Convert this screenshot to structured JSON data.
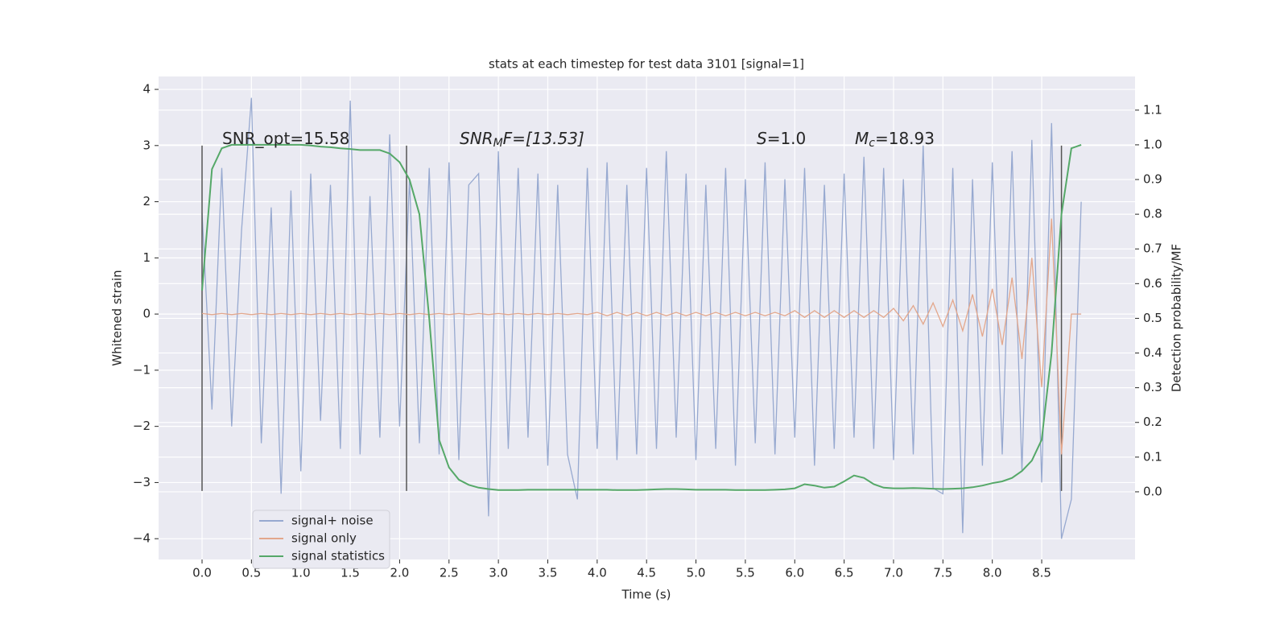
{
  "chart_data": {
    "type": "line",
    "title": "stats at each timestep for test data 3101 [signal=1]",
    "xlabel": "Time (s)",
    "ylabel": "Whitened strain",
    "y2label": "Detection probability/MF",
    "xlim": [
      -0.44,
      9.445
    ],
    "ylim": [
      -4.37,
      4.23
    ],
    "y2lim": [
      -0.195,
      1.197
    ],
    "xticks": [
      {
        "value": 0,
        "label": "0.0"
      },
      0.5,
      {
        "value": 1,
        "label": "1.0"
      },
      1.5,
      {
        "value": 2,
        "label": "2.0"
      },
      2.5,
      {
        "value": 3,
        "label": "3.0"
      },
      3.5,
      {
        "value": 4,
        "label": "4.0"
      },
      4.5,
      {
        "value": 5,
        "label": "5.0"
      },
      5.5,
      {
        "value": 6,
        "label": "6.0"
      },
      6.5,
      {
        "value": 7,
        "label": "7.0"
      },
      7.5,
      {
        "value": 8,
        "label": "8.0"
      },
      8.5
    ],
    "yticks": [
      {
        "value": -4,
        "label": "−4"
      },
      {
        "value": -3,
        "label": "−3"
      },
      {
        "value": -2,
        "label": "−2"
      },
      {
        "value": -1,
        "label": "−1"
      },
      0,
      1,
      2,
      3,
      4
    ],
    "y2ticks": [
      {
        "value": 0,
        "label": "0.0"
      },
      0.1,
      0.2,
      0.3,
      0.4,
      0.5,
      0.6,
      0.7,
      0.8,
      0.9,
      {
        "value": 1,
        "label": "1.0"
      },
      1.1
    ],
    "grid": true,
    "legend": "lower left",
    "x": [
      0.0,
      0.1,
      0.2,
      0.3,
      0.4,
      0.5,
      0.6,
      0.7,
      0.8,
      0.9,
      1.0,
      1.1,
      1.2,
      1.3,
      1.4,
      1.5,
      1.6,
      1.7,
      1.8,
      1.9,
      2.0,
      2.1,
      2.2,
      2.3,
      2.4,
      2.5,
      2.6,
      2.7,
      2.8,
      2.9,
      3.0,
      3.1,
      3.2,
      3.3,
      3.4,
      3.5,
      3.6,
      3.7,
      3.8,
      3.9,
      4.0,
      4.1,
      4.2,
      4.3,
      4.4,
      4.5,
      4.6,
      4.7,
      4.8,
      4.9,
      5.0,
      5.1,
      5.2,
      5.3,
      5.4,
      5.5,
      5.6,
      5.7,
      5.8,
      5.9,
      6.0,
      6.1,
      6.2,
      6.3,
      6.4,
      6.5,
      6.6,
      6.7,
      6.8,
      6.9,
      7.0,
      7.1,
      7.2,
      7.3,
      7.4,
      7.5,
      7.6,
      7.7,
      7.8,
      7.9,
      8.0,
      8.1,
      8.2,
      8.3,
      8.4,
      8.5,
      8.6,
      8.7,
      8.8,
      8.9
    ],
    "series": [
      {
        "name": "signal+ noise",
        "color": "#97a9d0",
        "values": [
          1.8,
          -1.7,
          2.6,
          -2.0,
          1.5,
          3.85,
          -2.3,
          1.9,
          -3.2,
          2.2,
          -2.8,
          2.5,
          -1.9,
          2.3,
          -2.4,
          3.8,
          -2.5,
          2.1,
          -2.2,
          3.2,
          -2.0,
          2.4,
          -2.3,
          2.6,
          -2.5,
          2.7,
          -2.6,
          2.3,
          2.5,
          -3.6,
          2.9,
          -2.4,
          2.6,
          -2.2,
          2.5,
          -2.7,
          2.3,
          -2.5,
          -3.3,
          2.6,
          -2.4,
          2.7,
          -2.6,
          2.3,
          -2.5,
          2.6,
          -2.4,
          2.9,
          -2.2,
          2.5,
          -2.6,
          2.3,
          -2.4,
          2.6,
          -2.7,
          2.4,
          -2.3,
          2.7,
          -2.5,
          2.4,
          -2.2,
          2.6,
          -2.7,
          2.3,
          -2.4,
          2.5,
          -2.2,
          2.8,
          -2.4,
          2.6,
          -2.6,
          2.4,
          -2.5,
          3.0,
          -3.1,
          -3.2,
          2.6,
          -3.9,
          2.4,
          -2.7,
          2.7,
          -2.5,
          2.9,
          -2.8,
          3.1,
          -3.0,
          3.4,
          -4.0,
          -3.3,
          2.0
        ]
      },
      {
        "name": "signal only",
        "color": "#e3a78c",
        "values": [
          0.01,
          -0.01,
          0.01,
          -0.01,
          0.01,
          -0.01,
          0.01,
          -0.01,
          0.01,
          -0.01,
          0.01,
          -0.01,
          0.01,
          -0.01,
          0.01,
          -0.01,
          0.01,
          -0.01,
          0.01,
          -0.01,
          0.01,
          -0.01,
          0.01,
          -0.01,
          0.01,
          -0.01,
          0.01,
          -0.01,
          0.01,
          -0.01,
          0.01,
          -0.01,
          0.01,
          -0.01,
          0.01,
          -0.01,
          0.01,
          -0.01,
          0.01,
          -0.01,
          0.03,
          -0.03,
          0.03,
          -0.03,
          0.03,
          -0.03,
          0.03,
          -0.03,
          0.03,
          -0.03,
          0.03,
          -0.03,
          0.03,
          -0.03,
          0.03,
          -0.03,
          0.03,
          -0.03,
          0.03,
          -0.03,
          0.06,
          -0.06,
          0.06,
          -0.06,
          0.06,
          -0.06,
          0.06,
          -0.06,
          0.06,
          -0.06,
          0.1,
          -0.12,
          0.15,
          -0.18,
          0.2,
          -0.22,
          0.25,
          -0.3,
          0.35,
          -0.4,
          0.45,
          -0.55,
          0.65,
          -0.8,
          1.0,
          -1.3,
          1.7,
          -2.5,
          0,
          0
        ]
      },
      {
        "name": "signal statistics",
        "color": "#55a868",
        "axis": "y2",
        "values": [
          0.58,
          0.93,
          0.99,
          1.0,
          1.0,
          1.0,
          1.0,
          1.0,
          1.0,
          1.0,
          1.0,
          0.998,
          0.995,
          0.993,
          0.99,
          0.988,
          0.985,
          0.985,
          0.985,
          0.975,
          0.95,
          0.9,
          0.8,
          0.5,
          0.15,
          0.07,
          0.035,
          0.02,
          0.012,
          0.008,
          0.005,
          0.005,
          0.005,
          0.006,
          0.006,
          0.006,
          0.006,
          0.006,
          0.006,
          0.006,
          0.006,
          0.006,
          0.005,
          0.005,
          0.005,
          0.006,
          0.007,
          0.008,
          0.008,
          0.007,
          0.006,
          0.006,
          0.006,
          0.006,
          0.005,
          0.005,
          0.005,
          0.005,
          0.006,
          0.007,
          0.01,
          0.022,
          0.018,
          0.012,
          0.015,
          0.03,
          0.047,
          0.04,
          0.022,
          0.012,
          0.01,
          0.01,
          0.011,
          0.01,
          0.009,
          0.008,
          0.009,
          0.01,
          0.013,
          0.018,
          0.025,
          0.03,
          0.04,
          0.06,
          0.09,
          0.15,
          0.4,
          0.8,
          0.99,
          1.0
        ]
      }
    ],
    "vlines": {
      "x": [
        0,
        2.07,
        8.7
      ],
      "ymin": -3.15,
      "ymax": 3.0,
      "color": "#555555"
    },
    "annotations": [
      {
        "base": "SNR_opt=15.58"
      },
      {
        "base": "SNR",
        "sub": "M",
        "rest": "F=[13.53]"
      },
      {
        "base": "S",
        "rest": "=1.0"
      },
      {
        "base": "M",
        "sub": "c",
        "rest": "=18.93"
      }
    ]
  }
}
